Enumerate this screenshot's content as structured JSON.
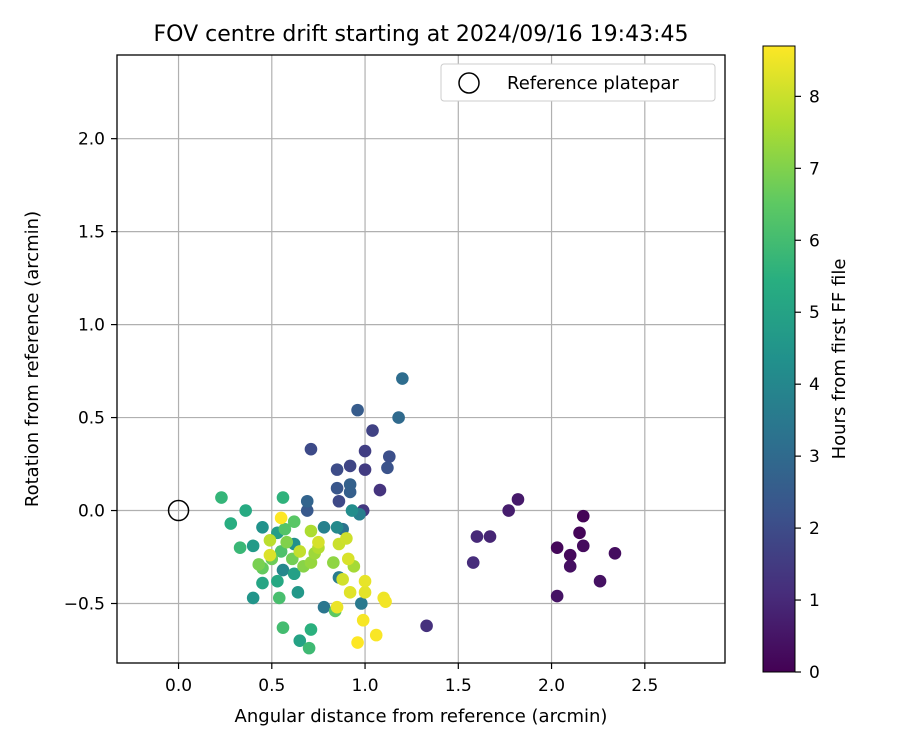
{
  "chart_data": {
    "type": "scatter",
    "title": "FOV centre drift starting at 2024/09/16 19:43:45",
    "xlabel": "Angular distance from reference (arcmin)",
    "ylabel": "Rotation from reference (arcmin)",
    "xlim": [
      -0.33,
      2.93
    ],
    "ylim": [
      -0.82,
      2.45
    ],
    "xticks": [
      0.0,
      0.5,
      1.0,
      1.5,
      2.0,
      2.5
    ],
    "xtick_labels": [
      "0.0",
      "0.5",
      "1.0",
      "1.5",
      "2.0",
      "2.5"
    ],
    "yticks": [
      -0.5,
      0.0,
      0.5,
      1.0,
      1.5,
      2.0
    ],
    "ytick_labels": [
      "−0.5",
      "0.0",
      "0.5",
      "1.0",
      "1.5",
      "2.0"
    ],
    "grid": true,
    "legend": {
      "position": "top-right",
      "entries": [
        "Reference platepar"
      ]
    },
    "reference_point": {
      "x": 0.0,
      "y": 0.0,
      "label": "Reference platepar"
    },
    "colorbar": {
      "label": "Hours from first FF file",
      "min": 0,
      "max": 8.7,
      "ticks": [
        0,
        1,
        2,
        3,
        4,
        5,
        6,
        7,
        8
      ],
      "tick_labels": [
        "0",
        "1",
        "2",
        "3",
        "4",
        "5",
        "6",
        "7",
        "8"
      ],
      "colormap": "viridis"
    },
    "points": [
      {
        "x": 2.17,
        "y": -0.03,
        "h": 0.05
      },
      {
        "x": 2.15,
        "y": -0.12,
        "h": 0.1
      },
      {
        "x": 2.03,
        "y": -0.2,
        "h": 0.15
      },
      {
        "x": 2.1,
        "y": -0.24,
        "h": 0.2
      },
      {
        "x": 2.17,
        "y": -0.19,
        "h": 0.25
      },
      {
        "x": 2.34,
        "y": -0.23,
        "h": 0.3
      },
      {
        "x": 2.1,
        "y": -0.3,
        "h": 0.35
      },
      {
        "x": 2.26,
        "y": -0.38,
        "h": 0.4
      },
      {
        "x": 2.03,
        "y": -0.46,
        "h": 0.45
      },
      {
        "x": 1.82,
        "y": 0.06,
        "h": 0.6
      },
      {
        "x": 1.77,
        "y": 0.0,
        "h": 0.7
      },
      {
        "x": 1.67,
        "y": -0.14,
        "h": 0.9
      },
      {
        "x": 1.6,
        "y": -0.14,
        "h": 1.0
      },
      {
        "x": 1.58,
        "y": -0.28,
        "h": 1.1
      },
      {
        "x": 1.33,
        "y": -0.62,
        "h": 1.2
      },
      {
        "x": 1.08,
        "y": 0.11,
        "h": 1.3
      },
      {
        "x": 0.99,
        "y": 0.0,
        "h": 1.4
      },
      {
        "x": 1.0,
        "y": 0.22,
        "h": 1.5
      },
      {
        "x": 1.0,
        "y": 0.32,
        "h": 1.6
      },
      {
        "x": 1.04,
        "y": 0.43,
        "h": 1.7
      },
      {
        "x": 0.92,
        "y": 0.24,
        "h": 1.8
      },
      {
        "x": 0.86,
        "y": 0.05,
        "h": 1.9
      },
      {
        "x": 0.71,
        "y": 0.33,
        "h": 1.95
      },
      {
        "x": 0.85,
        "y": 0.22,
        "h": 2.0
      },
      {
        "x": 1.13,
        "y": 0.29,
        "h": 2.1
      },
      {
        "x": 1.12,
        "y": 0.23,
        "h": 2.2
      },
      {
        "x": 0.85,
        "y": 0.12,
        "h": 2.3
      },
      {
        "x": 0.69,
        "y": 0.0,
        "h": 2.4
      },
      {
        "x": 0.96,
        "y": 0.54,
        "h": 2.5
      },
      {
        "x": 0.92,
        "y": 0.1,
        "h": 2.6
      },
      {
        "x": 0.92,
        "y": 0.14,
        "h": 2.7
      },
      {
        "x": 0.69,
        "y": 0.05,
        "h": 2.8
      },
      {
        "x": 1.18,
        "y": 0.5,
        "h": 3.0
      },
      {
        "x": 1.2,
        "y": 0.71,
        "h": 3.1
      },
      {
        "x": 0.88,
        "y": -0.1,
        "h": 3.3
      },
      {
        "x": 0.78,
        "y": -0.52,
        "h": 3.4
      },
      {
        "x": 0.98,
        "y": -0.5,
        "h": 3.5
      },
      {
        "x": 0.86,
        "y": -0.36,
        "h": 3.6
      },
      {
        "x": 0.97,
        "y": -0.02,
        "h": 3.7
      },
      {
        "x": 0.78,
        "y": -0.09,
        "h": 3.8
      },
      {
        "x": 0.56,
        "y": -0.32,
        "h": 4.0
      },
      {
        "x": 0.85,
        "y": -0.09,
        "h": 4.1
      },
      {
        "x": 0.93,
        "y": 0.0,
        "h": 4.2
      },
      {
        "x": 0.62,
        "y": -0.18,
        "h": 4.3
      },
      {
        "x": 0.45,
        "y": -0.09,
        "h": 4.4
      },
      {
        "x": 0.4,
        "y": -0.47,
        "h": 4.5
      },
      {
        "x": 0.64,
        "y": -0.44,
        "h": 4.6
      },
      {
        "x": 0.4,
        "y": -0.19,
        "h": 4.7
      },
      {
        "x": 0.53,
        "y": -0.12,
        "h": 4.8
      },
      {
        "x": 0.62,
        "y": -0.34,
        "h": 4.9
      },
      {
        "x": 0.65,
        "y": -0.7,
        "h": 5.0
      },
      {
        "x": 0.45,
        "y": -0.39,
        "h": 5.1
      },
      {
        "x": 0.53,
        "y": -0.38,
        "h": 5.2
      },
      {
        "x": 0.36,
        "y": 0.0,
        "h": 5.3
      },
      {
        "x": 0.28,
        "y": -0.07,
        "h": 5.4
      },
      {
        "x": 0.71,
        "y": -0.64,
        "h": 5.5
      },
      {
        "x": 0.56,
        "y": 0.07,
        "h": 5.6
      },
      {
        "x": 0.23,
        "y": 0.07,
        "h": 5.7
      },
      {
        "x": 0.33,
        "y": -0.2,
        "h": 5.8
      },
      {
        "x": 0.7,
        "y": -0.74,
        "h": 5.9
      },
      {
        "x": 0.56,
        "y": -0.63,
        "h": 6.0
      },
      {
        "x": 0.54,
        "y": -0.47,
        "h": 6.1
      },
      {
        "x": 0.55,
        "y": -0.22,
        "h": 6.2
      },
      {
        "x": 0.57,
        "y": -0.1,
        "h": 6.3
      },
      {
        "x": 0.62,
        "y": -0.06,
        "h": 6.4
      },
      {
        "x": 0.84,
        "y": -0.54,
        "h": 6.5
      },
      {
        "x": 0.45,
        "y": -0.31,
        "h": 6.6
      },
      {
        "x": 0.5,
        "y": -0.26,
        "h": 6.7
      },
      {
        "x": 0.61,
        "y": -0.26,
        "h": 6.8
      },
      {
        "x": 0.43,
        "y": -0.29,
        "h": 6.9
      },
      {
        "x": 0.58,
        "y": -0.17,
        "h": 7.0
      },
      {
        "x": 0.67,
        "y": -0.3,
        "h": 7.1
      },
      {
        "x": 0.83,
        "y": -0.28,
        "h": 7.2
      },
      {
        "x": 0.71,
        "y": -0.28,
        "h": 7.3
      },
      {
        "x": 0.73,
        "y": -0.23,
        "h": 7.4
      },
      {
        "x": 0.94,
        "y": -0.3,
        "h": 7.5
      },
      {
        "x": 0.71,
        "y": -0.11,
        "h": 7.6
      },
      {
        "x": 0.75,
        "y": -0.2,
        "h": 7.7
      },
      {
        "x": 0.49,
        "y": -0.16,
        "h": 7.8
      },
      {
        "x": 0.65,
        "y": -0.22,
        "h": 7.9
      },
      {
        "x": 0.86,
        "y": -0.18,
        "h": 8.0
      },
      {
        "x": 0.9,
        "y": -0.15,
        "h": 8.05
      },
      {
        "x": 0.88,
        "y": -0.37,
        "h": 8.1
      },
      {
        "x": 0.75,
        "y": -0.17,
        "h": 8.15
      },
      {
        "x": 0.91,
        "y": -0.26,
        "h": 8.2
      },
      {
        "x": 0.49,
        "y": -0.24,
        "h": 8.25
      },
      {
        "x": 0.92,
        "y": -0.44,
        "h": 8.3
      },
      {
        "x": 1.0,
        "y": -0.44,
        "h": 8.35
      },
      {
        "x": 1.0,
        "y": -0.38,
        "h": 8.4
      },
      {
        "x": 0.85,
        "y": -0.52,
        "h": 8.45
      },
      {
        "x": 1.1,
        "y": -0.47,
        "h": 8.5
      },
      {
        "x": 1.11,
        "y": -0.49,
        "h": 8.55
      },
      {
        "x": 0.99,
        "y": -0.59,
        "h": 8.6
      },
      {
        "x": 1.06,
        "y": -0.67,
        "h": 8.65
      },
      {
        "x": 0.96,
        "y": -0.71,
        "h": 8.7
      },
      {
        "x": 0.55,
        "y": -0.04,
        "h": 8.7
      }
    ]
  }
}
